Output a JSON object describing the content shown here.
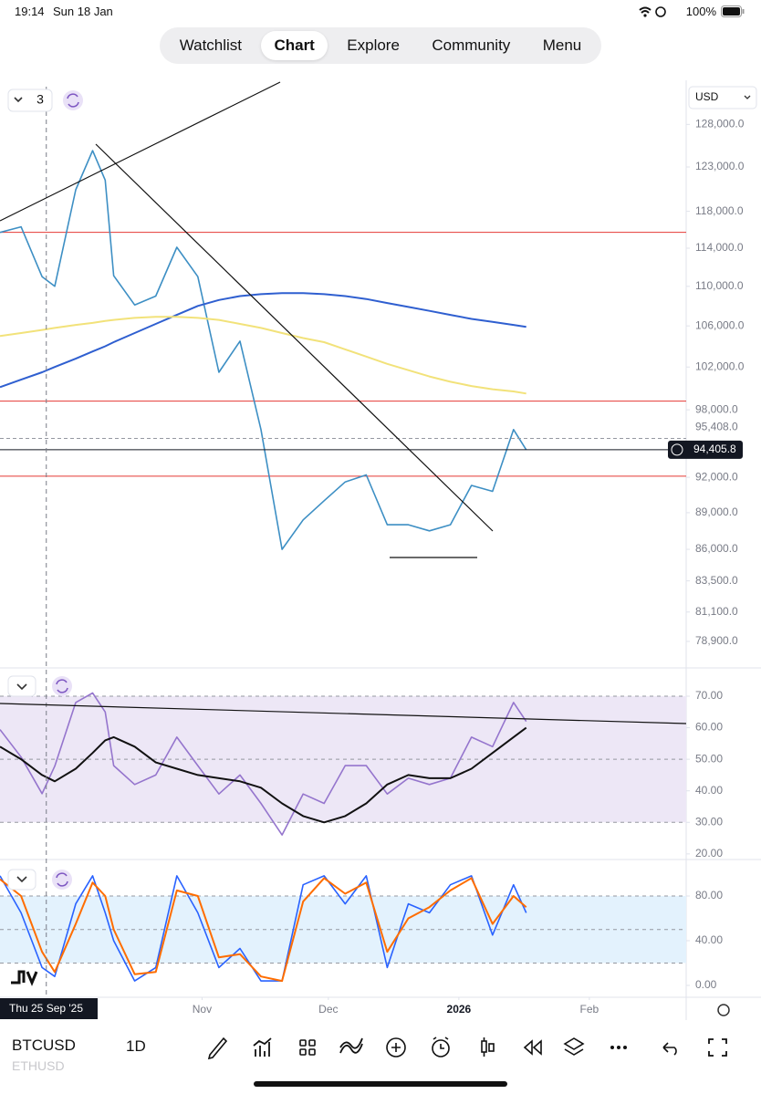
{
  "status_bar": {
    "time": "19:14",
    "date": "Sun 18 Jan",
    "battery": "100%"
  },
  "nav": {
    "tabs": [
      "Watchlist",
      "Chart",
      "Explore",
      "Community",
      "Menu"
    ],
    "active": 1
  },
  "panel_controls": {
    "layout_count": "3",
    "currency": "USD"
  },
  "crosshair": {
    "date": "2025-09-25",
    "label": "Thu 25 Sep '25"
  },
  "toolbar": {
    "symbol": "BTCUSD",
    "compare_symbol": "ETHUSD",
    "interval": "1D"
  },
  "chart_data": [
    {
      "type": "line",
      "log": true,
      "xlim": [
        "2025-09-14",
        "2026-02-24"
      ],
      "ylim": [
        77100,
        132600
      ],
      "yticks": [
        {
          "value": 128000,
          "label": "128,000.0"
        },
        {
          "value": 123000,
          "label": "123,000.0"
        },
        {
          "value": 118000,
          "label": "118,000.0"
        },
        {
          "value": 114000,
          "label": "114,000.0"
        },
        {
          "value": 110000,
          "label": "110,000.0"
        },
        {
          "value": 106000,
          "label": "106,000.0"
        },
        {
          "value": 102000,
          "label": "102,000.0"
        },
        {
          "value": 98000,
          "label": "98,000.0"
        },
        {
          "value": 92000,
          "label": "92,000.0"
        },
        {
          "value": 89000,
          "label": "89,000.0"
        },
        {
          "value": 86000,
          "label": "86,000.0"
        },
        {
          "value": 83500,
          "label": "83,500.0"
        },
        {
          "value": 81100,
          "label": "81,100.0"
        },
        {
          "value": 78900,
          "label": "78,900.0"
        }
      ],
      "x": [
        "2025-09-14",
        "2025-09-19",
        "2025-09-24",
        "2025-09-27",
        "2025-10-02",
        "2025-10-06",
        "2025-10-09",
        "2025-10-11",
        "2025-10-16",
        "2025-10-21",
        "2025-10-26",
        "2025-10-31",
        "2025-11-05",
        "2025-11-10",
        "2025-11-15",
        "2025-11-20",
        "2025-11-25",
        "2025-11-30",
        "2025-12-05",
        "2025-12-10",
        "2025-12-15",
        "2025-12-20",
        "2025-12-25",
        "2025-12-30",
        "2026-01-04",
        "2026-01-09",
        "2026-01-14",
        "2026-01-17"
      ],
      "series": [
        {
          "color": "#3d8fc4",
          "values": [
            115700,
            116300,
            111000,
            110000,
            120400,
            124900,
            121500,
            111100,
            108100,
            109000,
            114100,
            111000,
            101500,
            104500,
            96200,
            86000,
            88400,
            90000,
            91600,
            92200,
            88000,
            88000,
            87500,
            88000,
            91300,
            90800,
            96200,
            94400
          ]
        },
        {
          "color": "#2f5fd0",
          "values": [
            100100,
            100800,
            101500,
            102000,
            102800,
            103500,
            104000,
            104400,
            105300,
            106200,
            107100,
            108000,
            108600,
            109000,
            109200,
            109300,
            109300,
            109200,
            109000,
            108700,
            108300,
            107900,
            107500,
            107100,
            106700,
            106400,
            106100,
            105900
          ]
        },
        {
          "color": "#f2e27a",
          "values": [
            105000,
            105300,
            105600,
            105800,
            106100,
            106300,
            106500,
            106600,
            106800,
            106900,
            106900,
            106800,
            106600,
            106200,
            105800,
            105300,
            104800,
            104400,
            103700,
            103000,
            102300,
            101700,
            101100,
            100600,
            100200,
            99900,
            99700,
            99500
          ]
        }
      ],
      "levels": [
        {
          "value": 115700,
          "color": "#e53935"
        },
        {
          "value": 98800,
          "color": "#e53935"
        },
        {
          "value": 92100,
          "color": "#e53935"
        }
      ],
      "markers": [
        {
          "value": 95408,
          "label": "95,408.0"
        },
        {
          "value": 94405.8,
          "label": "94,405.8"
        }
      ]
    },
    {
      "type": "line",
      "xlim": [
        "2025-09-14",
        "2026-02-24"
      ],
      "ylim": [
        18.8,
        78.1
      ],
      "yticks": [
        {
          "value": 70,
          "label": "70.00"
        },
        {
          "value": 60,
          "label": "60.00"
        },
        {
          "value": 50,
          "label": "50.00"
        },
        {
          "value": 40,
          "label": "40.00"
        },
        {
          "value": 30,
          "label": "30.00"
        },
        {
          "value": 20,
          "label": "20.00"
        }
      ],
      "band": [
        30,
        70
      ],
      "band_color": "#ede7f6",
      "levels": [
        30,
        50,
        70
      ],
      "x": [
        "2025-09-14",
        "2025-09-19",
        "2025-09-24",
        "2025-09-27",
        "2025-10-02",
        "2025-10-06",
        "2025-10-09",
        "2025-10-11",
        "2025-10-16",
        "2025-10-21",
        "2025-10-26",
        "2025-10-31",
        "2025-11-05",
        "2025-11-10",
        "2025-11-15",
        "2025-11-20",
        "2025-11-25",
        "2025-11-30",
        "2025-12-05",
        "2025-12-10",
        "2025-12-15",
        "2025-12-20",
        "2025-12-25",
        "2025-12-30",
        "2026-01-04",
        "2026-01-09",
        "2026-01-14",
        "2026-01-17"
      ],
      "series": [
        {
          "color": "#9575cd",
          "values": [
            59.4,
            50.7,
            39.1,
            47.8,
            68,
            71,
            65,
            48,
            42,
            45,
            57,
            48,
            39,
            45,
            36,
            26,
            39,
            36,
            48,
            48,
            39,
            44,
            42,
            44,
            57,
            54,
            68,
            62
          ]
        },
        {
          "color": "#111111",
          "values": [
            54,
            50,
            45,
            43,
            47,
            52,
            56,
            57,
            54,
            49,
            47,
            45,
            44,
            43,
            41,
            36,
            32,
            30,
            32,
            36,
            42,
            45,
            44,
            44,
            47,
            52,
            57,
            60
          ]
        }
      ]
    },
    {
      "type": "line",
      "xlim": [
        "2025-09-14",
        "2026-02-24"
      ],
      "ylim": [
        -8.2,
        110.2
      ],
      "yticks": [
        {
          "value": 80,
          "label": "80.00"
        },
        {
          "value": 40,
          "label": "40.00"
        },
        {
          "value": 0,
          "label": "0.00"
        }
      ],
      "xticks": [
        {
          "value": "2025-11-01",
          "label": "Nov"
        },
        {
          "value": "2025-12-01",
          "label": "Dec"
        },
        {
          "value": "2026-01-01",
          "label": "2026"
        },
        {
          "value": "2026-02-01",
          "label": "Feb"
        }
      ],
      "band": [
        20,
        80
      ],
      "band_color": "#e3f2fd",
      "levels": [
        20,
        50,
        80
      ],
      "x": [
        "2025-09-14",
        "2025-09-19",
        "2025-09-24",
        "2025-09-27",
        "2025-10-02",
        "2025-10-06",
        "2025-10-09",
        "2025-10-11",
        "2025-10-16",
        "2025-10-21",
        "2025-10-26",
        "2025-10-31",
        "2025-11-05",
        "2025-11-10",
        "2025-11-15",
        "2025-11-20",
        "2025-11-25",
        "2025-11-30",
        "2025-12-05",
        "2025-12-10",
        "2025-12-15",
        "2025-12-20",
        "2025-12-25",
        "2025-12-30",
        "2026-01-04",
        "2026-01-09",
        "2026-01-14",
        "2026-01-17"
      ],
      "series": [
        {
          "color": "#2962ff",
          "values": [
            98,
            65,
            16,
            8,
            73,
            98,
            65,
            40,
            4,
            16,
            98,
            65,
            16,
            33,
            4,
            4,
            90,
            98,
            73,
            98,
            16,
            73,
            65,
            90,
            98,
            45,
            90,
            65
          ]
        },
        {
          "color": "#ff6d00",
          "values": [
            95,
            80,
            30,
            12,
            55,
            92,
            80,
            50,
            10,
            12,
            85,
            80,
            25,
            28,
            8,
            4,
            75,
            96,
            82,
            92,
            30,
            60,
            70,
            85,
            96,
            55,
            80,
            70
          ]
        }
      ]
    }
  ]
}
